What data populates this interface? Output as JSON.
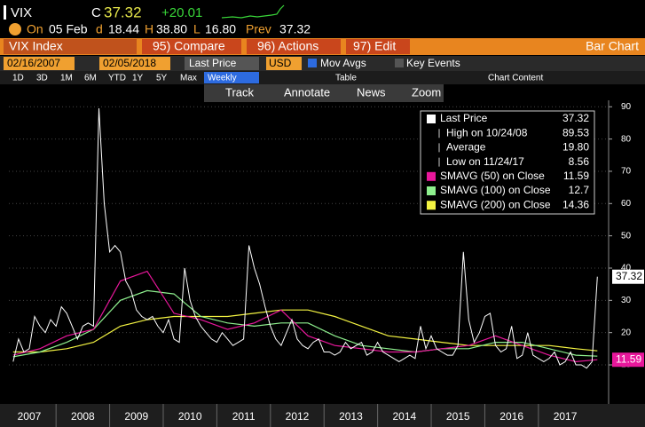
{
  "header": {
    "ticker": "VIX",
    "c": "C",
    "change": "+20.01",
    "on": "On",
    "date": "05 Feb",
    "d": "d",
    "open": "18.44",
    "h": "H",
    "high": "38.80",
    "l": "L",
    "low": "16.80",
    "prev_label": "Prev",
    "prev": "37.32"
  },
  "menu": {
    "security": "VIX Index",
    "compare": "95) Compare",
    "actions": "96) Actions",
    "edit": "97) Edit",
    "view": "Bar Chart"
  },
  "toolbar": {
    "start": "02/16/2007",
    "end": "02/05/2018",
    "field": "Last Price",
    "currency": "USD",
    "mov_avgs": "Mov Avgs",
    "key_events": "Key Events"
  },
  "ranges": {
    "buttons": [
      "1D",
      "3D",
      "1M",
      "6M",
      "YTD",
      "1Y",
      "5Y",
      "Max"
    ],
    "period": "Weekly",
    "table": "Table",
    "content": "Chart Content"
  },
  "tools": {
    "track": "Track",
    "annotate": "Annotate",
    "news": "News",
    "zoom": "Zoom"
  },
  "chart_data": {
    "type": "line",
    "xlim": [
      2007.12,
      2018.31
    ],
    "xticks": [
      {
        "value": 2007.5,
        "label": "2007"
      },
      {
        "value": 2008.5,
        "label": "2008"
      },
      {
        "value": 2009.5,
        "label": "2009"
      },
      {
        "value": 2010.5,
        "label": "2010"
      },
      {
        "value": 2011.5,
        "label": "2011"
      },
      {
        "value": 2012.5,
        "label": "2012"
      },
      {
        "value": 2013.5,
        "label": "2013"
      },
      {
        "value": 2014.5,
        "label": "2014"
      },
      {
        "value": 2015.5,
        "label": "2015"
      },
      {
        "value": 2016.5,
        "label": "2016"
      },
      {
        "value": 2017.5,
        "label": "2017"
      }
    ],
    "ylim": [
      -1,
      92
    ],
    "yticks": [
      10,
      20,
      30,
      40,
      50,
      60,
      70,
      80,
      90
    ],
    "grid": true,
    "series": [
      {
        "name": "Last Price",
        "color": "#ffffff",
        "x": [
          2007.2,
          2007.3,
          2007.4,
          2007.5,
          2007.6,
          2007.7,
          2007.8,
          2007.9,
          2008.0,
          2008.1,
          2008.2,
          2008.3,
          2008.4,
          2008.5,
          2008.6,
          2008.7,
          2008.8,
          2008.9,
          2009.0,
          2009.1,
          2009.2,
          2009.3,
          2009.4,
          2009.5,
          2009.6,
          2009.7,
          2009.8,
          2009.9,
          2010.0,
          2010.1,
          2010.2,
          2010.3,
          2010.4,
          2010.5,
          2010.6,
          2010.7,
          2010.8,
          2010.9,
          2011.0,
          2011.1,
          2011.2,
          2011.3,
          2011.4,
          2011.5,
          2011.6,
          2011.7,
          2011.8,
          2011.9,
          2012.0,
          2012.1,
          2012.2,
          2012.3,
          2012.4,
          2012.5,
          2012.6,
          2012.7,
          2012.8,
          2012.9,
          2013.0,
          2013.1,
          2013.2,
          2013.3,
          2013.4,
          2013.5,
          2013.6,
          2013.7,
          2013.8,
          2013.9,
          2014.0,
          2014.1,
          2014.2,
          2014.3,
          2014.4,
          2014.5,
          2014.6,
          2014.7,
          2014.8,
          2014.9,
          2015.0,
          2015.1,
          2015.2,
          2015.3,
          2015.4,
          2015.5,
          2015.6,
          2015.7,
          2015.8,
          2015.9,
          2016.0,
          2016.1,
          2016.2,
          2016.3,
          2016.4,
          2016.5,
          2016.6,
          2016.7,
          2016.8,
          2016.9,
          2017.0,
          2017.1,
          2017.2,
          2017.3,
          2017.4,
          2017.5,
          2017.6,
          2017.7,
          2017.8,
          2017.9,
          2018.0,
          2018.1
        ],
        "values": [
          11,
          18,
          14,
          15,
          25,
          22,
          20,
          24,
          22,
          28,
          26,
          22,
          18,
          22,
          23,
          22,
          89.53,
          60,
          45,
          47,
          45,
          36,
          33,
          27,
          25,
          24,
          25,
          22,
          20,
          24,
          18,
          17,
          40,
          30,
          25,
          22,
          20,
          18,
          17,
          20,
          18,
          16,
          17,
          18,
          47,
          40,
          35,
          28,
          22,
          18,
          16,
          20,
          24,
          18,
          16,
          15,
          17,
          18,
          14,
          14,
          13,
          14,
          17,
          15,
          16,
          17,
          13,
          14,
          17,
          14,
          13,
          12,
          11,
          12,
          13,
          12,
          22,
          15,
          19,
          15,
          14,
          13,
          13,
          16,
          45,
          24,
          17,
          20,
          25,
          26,
          16,
          14,
          15,
          22,
          12,
          13,
          20,
          13,
          12,
          11,
          12,
          14,
          10,
          11,
          14,
          10,
          10,
          9,
          11,
          37.32
        ]
      },
      {
        "name": "SMAVG (50) on Close",
        "color": "#e8179b",
        "x": [
          2007.2,
          2007.7,
          2008.2,
          2008.7,
          2009.2,
          2009.7,
          2010.2,
          2010.7,
          2011.2,
          2011.7,
          2012.2,
          2012.7,
          2013.2,
          2013.7,
          2014.2,
          2014.7,
          2015.2,
          2015.7,
          2016.2,
          2016.7,
          2017.2,
          2017.7,
          2018.1
        ],
        "values": [
          13,
          15,
          19,
          21,
          36,
          39,
          26,
          24,
          21,
          23,
          27,
          19,
          16,
          15,
          14,
          14,
          15,
          16,
          19,
          16,
          13,
          11,
          11.59
        ]
      },
      {
        "name": "SMAVG (100) on Close",
        "color": "#8ef08e",
        "x": [
          2007.2,
          2007.7,
          2008.2,
          2008.7,
          2009.2,
          2009.7,
          2010.2,
          2010.7,
          2011.2,
          2011.7,
          2012.2,
          2012.7,
          2013.2,
          2013.7,
          2014.2,
          2014.7,
          2015.2,
          2015.7,
          2016.2,
          2016.7,
          2017.2,
          2017.7,
          2018.1
        ],
        "values": [
          12.5,
          14,
          17,
          21,
          30,
          33,
          32,
          25,
          23,
          22,
          23,
          23,
          19,
          16,
          15,
          14,
          15,
          15,
          17,
          17,
          15,
          13,
          12.7
        ]
      },
      {
        "name": "SMAVG (200) on Close",
        "color": "#f4f442",
        "x": [
          2007.2,
          2007.7,
          2008.2,
          2008.7,
          2009.2,
          2009.7,
          2010.2,
          2010.7,
          2011.2,
          2011.7,
          2012.2,
          2012.7,
          2013.2,
          2013.7,
          2014.2,
          2014.7,
          2015.2,
          2015.7,
          2016.2,
          2016.7,
          2017.2,
          2017.7,
          2018.1
        ],
        "values": [
          14,
          14,
          15,
          17,
          22,
          24,
          25,
          25,
          25,
          26,
          27,
          27,
          25,
          22,
          19,
          18,
          17,
          16,
          16,
          16,
          16,
          15,
          14.36
        ]
      }
    ],
    "stats": [
      {
        "label": "High on 10/24/08",
        "value": "89.53"
      },
      {
        "label": "Average",
        "value": "19.80"
      },
      {
        "label": "Low on 11/24/17",
        "value": "8.56"
      }
    ]
  }
}
